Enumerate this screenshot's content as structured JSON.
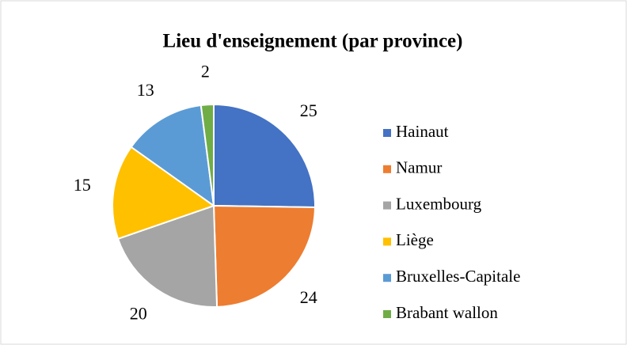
{
  "chart_data": {
    "type": "pie",
    "title": "Lieu d'enseignement (par province)",
    "categories": [
      "Hainaut",
      "Namur",
      "Luxembourg",
      "Liège",
      "Bruxelles-Capitale",
      "Brabant wallon"
    ],
    "values": [
      25,
      24,
      20,
      15,
      13,
      2
    ],
    "colors": [
      "#4472c4",
      "#ed7d31",
      "#a5a5a5",
      "#ffc000",
      "#5b9bd5",
      "#70ad47"
    ],
    "legend": "right"
  }
}
